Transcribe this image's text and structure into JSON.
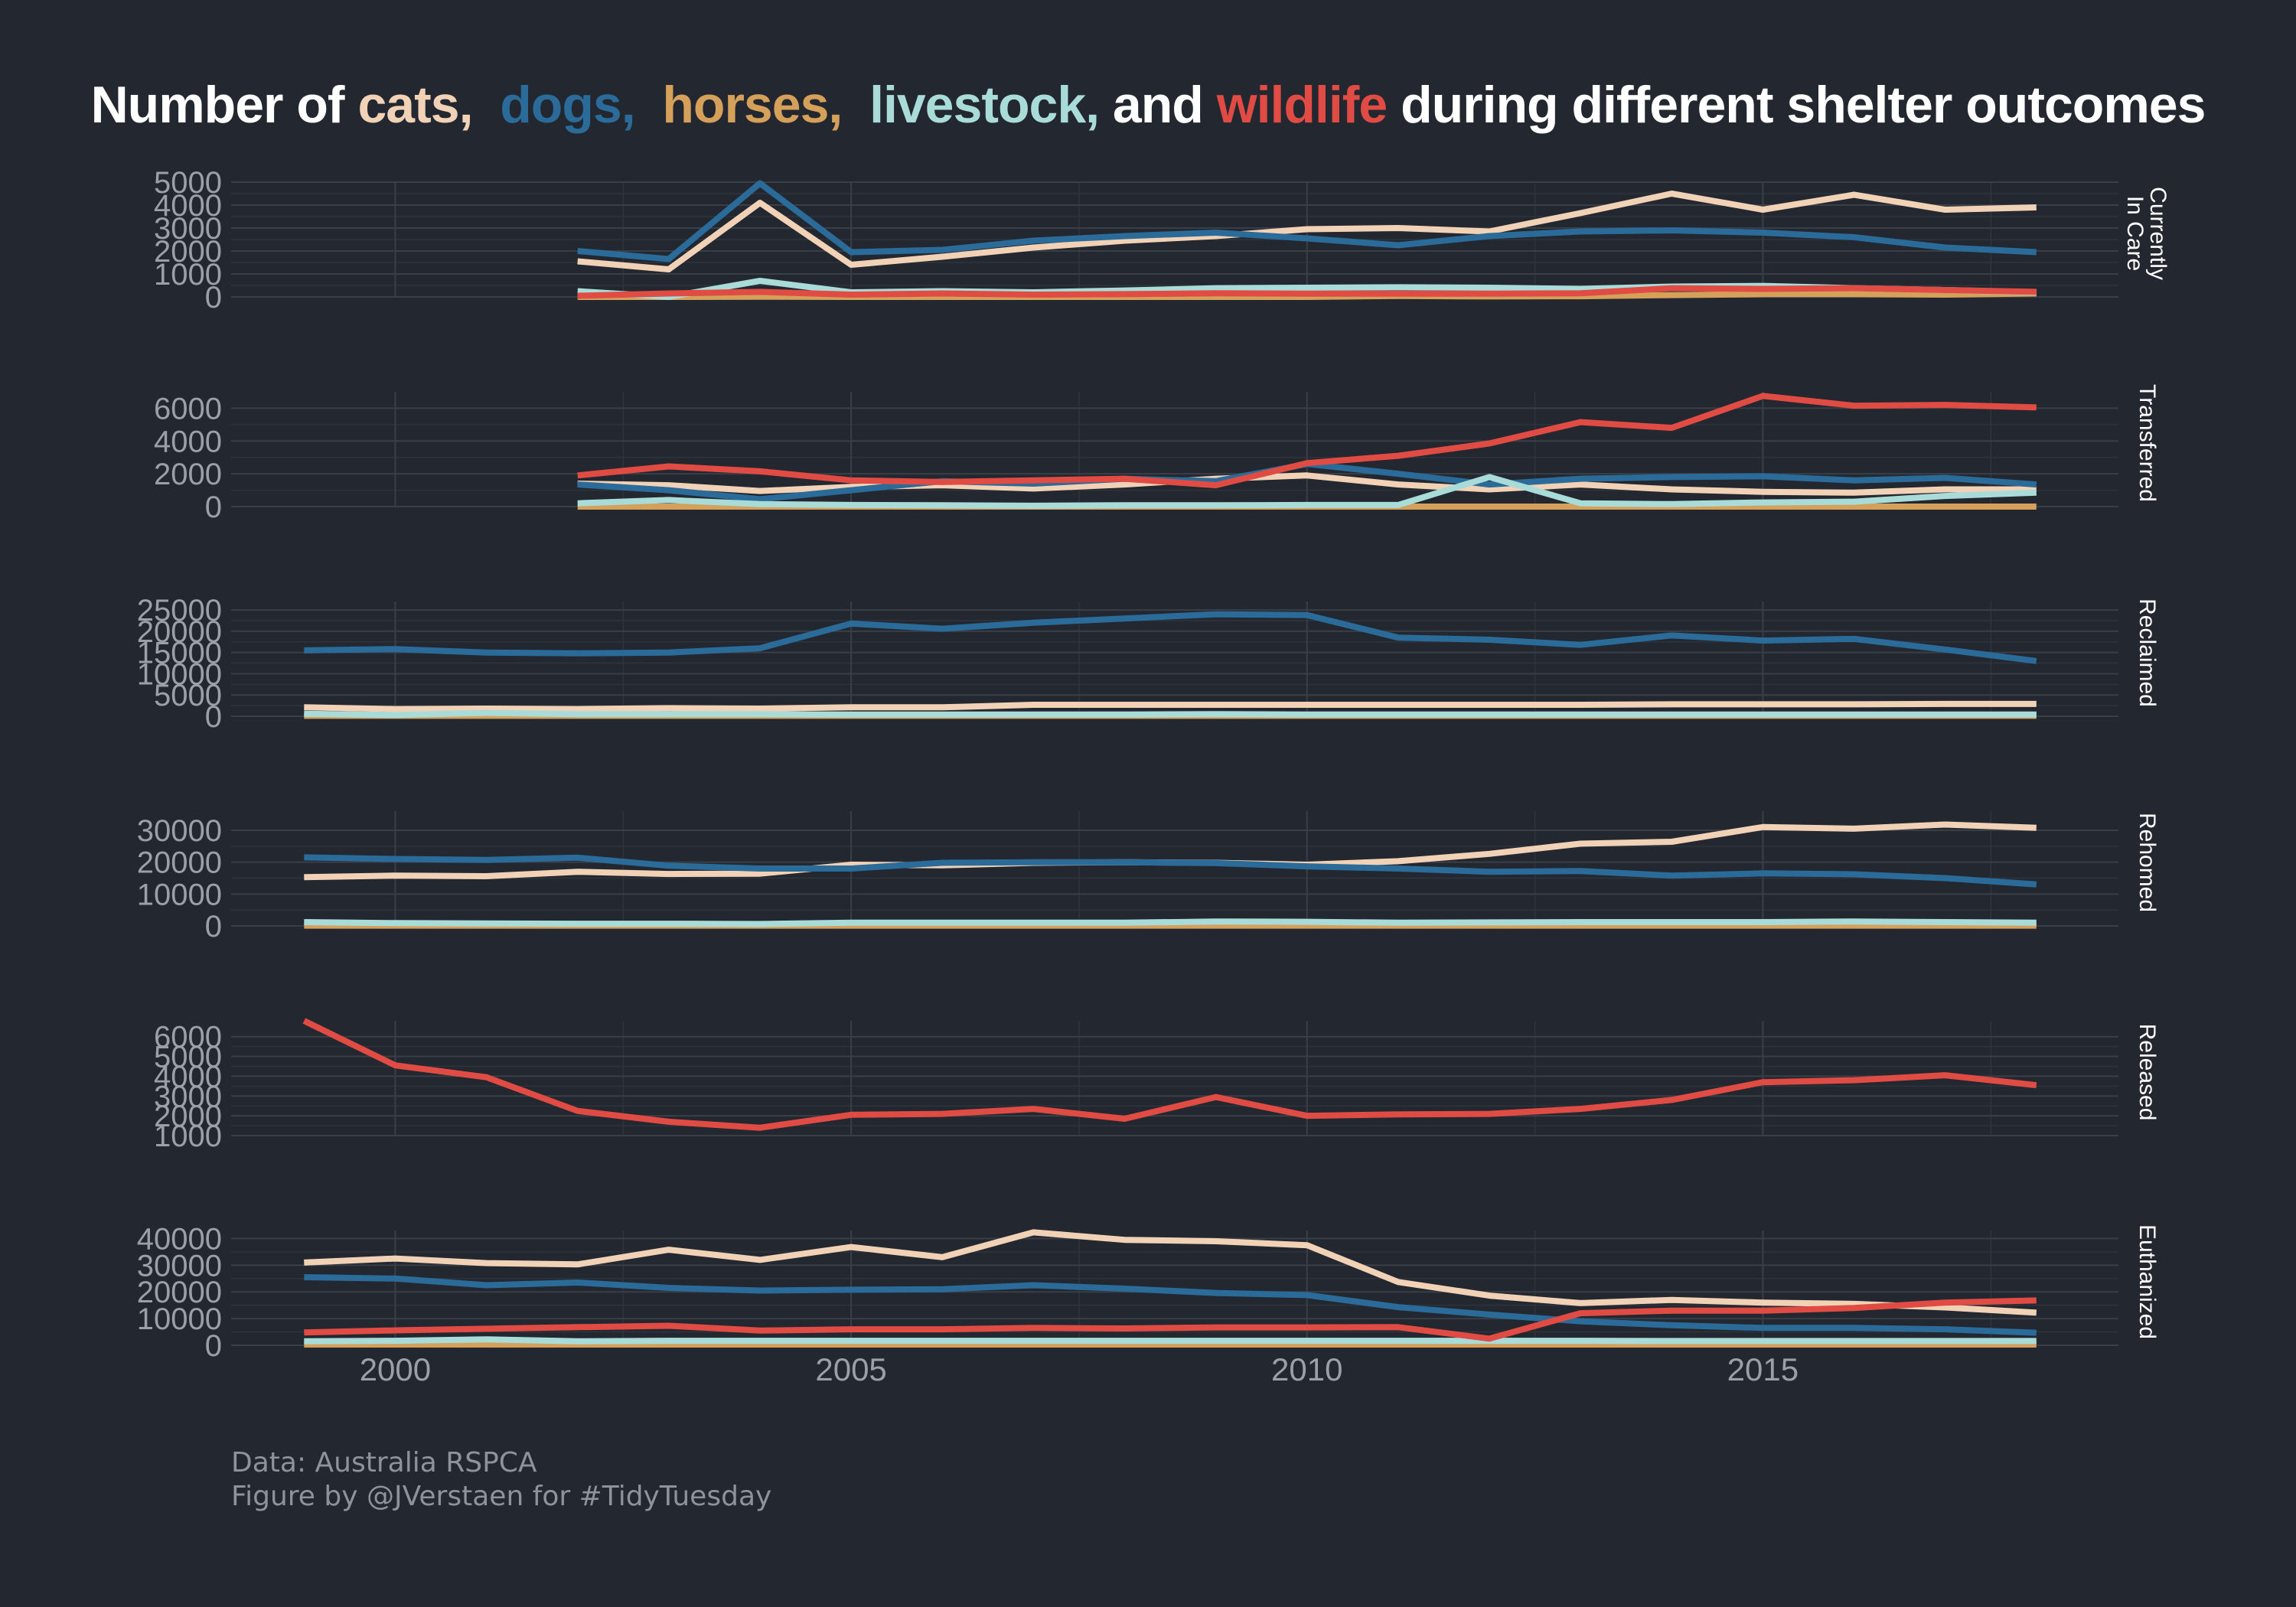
{
  "title": {
    "parts": [
      {
        "text": "Number of ",
        "color": "#ffffff"
      },
      {
        "text": "cats,",
        "color": "#f2d2b6"
      },
      {
        "text": "  ",
        "color": "#ffffff"
      },
      {
        "text": "dogs,",
        "color": "#2a6b99"
      },
      {
        "text": "  ",
        "color": "#ffffff"
      },
      {
        "text": "horses,",
        "color": "#d5a05a"
      },
      {
        "text": "  ",
        "color": "#ffffff"
      },
      {
        "text": "livestock,",
        "color": "#a9dcd9"
      },
      {
        "text": " and ",
        "color": "#ffffff"
      },
      {
        "text": "wildlife",
        "color": "#e04b44"
      },
      {
        "text": " during different shelter outcomes",
        "color": "#ffffff"
      }
    ]
  },
  "caption": {
    "line1": "Data: Australia RSPCA",
    "line2": "Figure by @JVerstaen for #TidyTuesday"
  },
  "chart_data": {
    "type": "line",
    "x": [
      1999,
      2000,
      2001,
      2002,
      2003,
      2004,
      2005,
      2006,
      2007,
      2008,
      2009,
      2010,
      2011,
      2012,
      2013,
      2014,
      2015,
      2016,
      2017,
      2018
    ],
    "xlim": [
      1998.2,
      2018.9
    ],
    "xticks": [
      2000,
      2005,
      2010,
      2015
    ],
    "colors": {
      "cats": "#f2d2b6",
      "dogs": "#2a6b99",
      "horses": "#d5a05a",
      "livestock": "#a9dcd9",
      "wildlife": "#e04b44"
    },
    "panels": [
      {
        "strip": [
          "Currently",
          "In Care"
        ],
        "ylim": [
          0,
          5000
        ],
        "yticks": [
          0,
          1000,
          2000,
          3000,
          4000,
          5000
        ],
        "series": [
          {
            "key": "cats",
            "values": [
              null,
              null,
              null,
              1550,
              1200,
              4100,
              1400,
              1750,
              2150,
              2450,
              2650,
              2950,
              3000,
              2850,
              3650,
              4500,
              3800,
              4450,
              3800,
              3900
            ]
          },
          {
            "key": "dogs",
            "values": [
              null,
              null,
              null,
              2000,
              1650,
              4950,
              1950,
              2050,
              2450,
              2650,
              2800,
              2550,
              2250,
              2650,
              2850,
              2900,
              2800,
              2600,
              2150,
              1950
            ]
          },
          {
            "key": "horses",
            "values": [
              null,
              null,
              null,
              0,
              0,
              10,
              0,
              0,
              0,
              0,
              0,
              0,
              40,
              20,
              30,
              80,
              120,
              120,
              100,
              150
            ]
          },
          {
            "key": "livestock",
            "values": [
              null,
              null,
              null,
              250,
              0,
              700,
              200,
              250,
              200,
              280,
              380,
              400,
              420,
              400,
              350,
              450,
              480,
              380,
              300,
              200
            ]
          },
          {
            "key": "wildlife",
            "values": [
              null,
              null,
              null,
              50,
              150,
              220,
              100,
              150,
              100,
              120,
              160,
              140,
              140,
              140,
              160,
              380,
              350,
              380,
              300,
              220
            ]
          }
        ]
      },
      {
        "strip": [
          "Transferred"
        ],
        "ylim": [
          0,
          7000
        ],
        "yticks": [
          0,
          2000,
          4000,
          6000
        ],
        "series": [
          {
            "key": "cats",
            "values": [
              null,
              null,
              null,
              1400,
              1300,
              950,
              1200,
              1300,
              1100,
              1350,
              1700,
              1900,
              1350,
              1050,
              1350,
              1050,
              900,
              850,
              1050,
              1050
            ]
          },
          {
            "key": "dogs",
            "values": [
              null,
              null,
              null,
              1350,
              1000,
              450,
              1000,
              1550,
              1400,
              1700,
              1550,
              2600,
              2000,
              1350,
              1700,
              1800,
              1850,
              1600,
              1750,
              1350
            ]
          },
          {
            "key": "horses",
            "values": [
              null,
              null,
              null,
              0,
              0,
              0,
              0,
              0,
              0,
              0,
              0,
              0,
              0,
              0,
              0,
              0,
              0,
              0,
              0,
              0
            ]
          },
          {
            "key": "livestock",
            "values": [
              null,
              null,
              null,
              200,
              400,
              150,
              100,
              80,
              50,
              80,
              80,
              100,
              100,
              1800,
              200,
              150,
              250,
              300,
              650,
              850
            ]
          },
          {
            "key": "wildlife",
            "values": [
              null,
              null,
              null,
              1900,
              2450,
              2150,
              1600,
              1500,
              1600,
              1700,
              1300,
              2650,
              3100,
              3850,
              5150,
              4800,
              6750,
              6150,
              6200,
              6050
            ]
          }
        ]
      },
      {
        "strip": [
          "Reclaimed"
        ],
        "ylim": [
          0,
          27000
        ],
        "yticks": [
          0,
          5000,
          10000,
          15000,
          20000,
          25000
        ],
        "series": [
          {
            "key": "cats",
            "values": [
              2100,
              1700,
              1800,
              1700,
              1900,
              1800,
              2100,
              2100,
              2700,
              2700,
              2700,
              2700,
              2700,
              2700,
              2700,
              2800,
              2800,
              2800,
              2900,
              2900
            ]
          },
          {
            "key": "dogs",
            "values": [
              15500,
              15800,
              15000,
              14800,
              15000,
              16000,
              21800,
              20600,
              22000,
              23000,
              24000,
              23800,
              18500,
              18000,
              16800,
              19000,
              17800,
              18200,
              15700,
              13000
            ]
          },
          {
            "key": "horses",
            "values": [
              100,
              100,
              100,
              100,
              100,
              100,
              100,
              100,
              100,
              100,
              100,
              100,
              100,
              100,
              100,
              100,
              100,
              100,
              100,
              100
            ]
          },
          {
            "key": "livestock",
            "values": [
              600,
              300,
              800,
              500,
              500,
              500,
              400,
              400,
              400,
              400,
              500,
              400,
              400,
              400,
              400,
              400,
              400,
              400,
              400,
              400
            ]
          }
        ]
      },
      {
        "strip": [
          "Rehomed"
        ],
        "ylim": [
          0,
          36000
        ],
        "yticks": [
          0,
          10000,
          20000,
          30000
        ],
        "series": [
          {
            "key": "cats",
            "values": [
              15300,
              15800,
              15600,
              17000,
              16300,
              16400,
              19200,
              19000,
              19800,
              20000,
              19800,
              19200,
              20300,
              22600,
              25800,
              26400,
              31000,
              30500,
              31800,
              30800
            ]
          },
          {
            "key": "dogs",
            "values": [
              21500,
              21000,
              20700,
              21400,
              18900,
              18000,
              18000,
              19800,
              20000,
              20000,
              19700,
              18700,
              18000,
              17000,
              17200,
              15800,
              16500,
              16200,
              15000,
              13000
            ]
          },
          {
            "key": "horses",
            "values": [
              100,
              100,
              100,
              100,
              100,
              100,
              100,
              100,
              100,
              100,
              100,
              100,
              100,
              100,
              100,
              100,
              100,
              100,
              100,
              100
            ]
          },
          {
            "key": "livestock",
            "values": [
              1200,
              900,
              800,
              700,
              700,
              600,
              1000,
              1000,
              1000,
              1000,
              1400,
              1300,
              1000,
              1100,
              1200,
              1200,
              1200,
              1400,
              1200,
              1000
            ]
          }
        ]
      },
      {
        "strip": [
          "Released"
        ],
        "ylim": [
          1000,
          6800
        ],
        "yticks": [
          1000,
          2000,
          3000,
          4000,
          5000,
          6000
        ],
        "series": [
          {
            "key": "wildlife",
            "values": [
              6800,
              4550,
              3950,
              2250,
              1700,
              1400,
              2050,
              2100,
              2350,
              1850,
              2950,
              2000,
              2070,
              2100,
              2350,
              2800,
              3700,
              3800,
              4050,
              3550
            ]
          }
        ]
      },
      {
        "strip": [
          "Euthanized"
        ],
        "ylim": [
          0,
          43000
        ],
        "yticks": [
          0,
          10000,
          20000,
          30000,
          40000
        ],
        "series": [
          {
            "key": "cats",
            "values": [
              31000,
              32500,
              30800,
              30300,
              35800,
              32000,
              36800,
              33000,
              42300,
              39500,
              39000,
              37500,
              23700,
              18600,
              15800,
              17000,
              16000,
              15500,
              14200,
              12200
            ]
          },
          {
            "key": "dogs",
            "values": [
              25500,
              25000,
              22500,
              23500,
              21500,
              20500,
              20800,
              21000,
              22500,
              21200,
              19600,
              18800,
              14300,
              11500,
              9000,
              7500,
              6500,
              6500,
              6000,
              4700
            ]
          },
          {
            "key": "horses",
            "values": [
              300,
              300,
              300,
              300,
              300,
              300,
              300,
              300,
              300,
              300,
              300,
              300,
              300,
              300,
              300,
              300,
              300,
              300,
              300,
              300
            ]
          },
          {
            "key": "livestock",
            "values": [
              1500,
              1700,
              2200,
              1500,
              1700,
              1700,
              1700,
              1700,
              1700,
              1700,
              1700,
              1700,
              1700,
              1700,
              1700,
              1600,
              1600,
              1600,
              1600,
              1600
            ]
          },
          {
            "key": "wildlife",
            "values": [
              4800,
              5600,
              6200,
              6800,
              7300,
              5500,
              6000,
              6000,
              6500,
              6300,
              6700,
              6700,
              6800,
              2500,
              12000,
              13000,
              13000,
              14000,
              16000,
              16800
            ]
          }
        ]
      }
    ]
  }
}
